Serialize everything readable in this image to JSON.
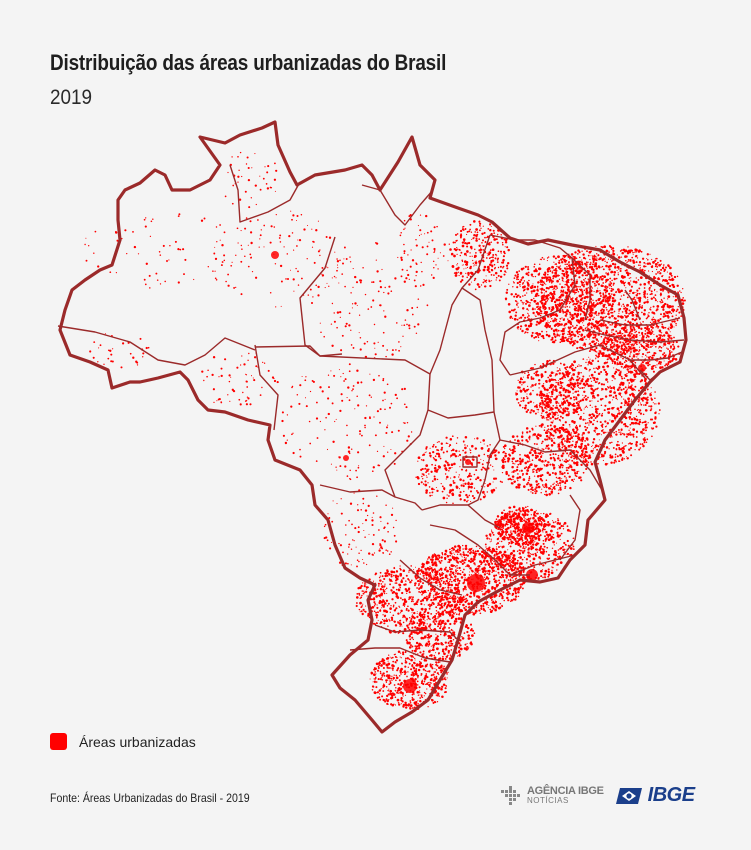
{
  "title": "Distribuição das áreas urbanizadas do Brasil",
  "subtitle": "2019",
  "legend": {
    "label": "Áreas urbanizadas",
    "color": "#ff0000"
  },
  "source": "Fonte: Áreas Urbanizadas do Brasil - 2019",
  "logos": {
    "agencia_main": "AGÊNCIA IBGE",
    "agencia_sub": "NOTÍCIAS",
    "ibge": "IBGE"
  },
  "colors": {
    "border": "#9b2a2a",
    "urban": "#ff0000",
    "land": "#f4f4f4"
  },
  "icons": [
    "agencia-ibge-logo-icon",
    "ibge-flag-icon"
  ]
}
